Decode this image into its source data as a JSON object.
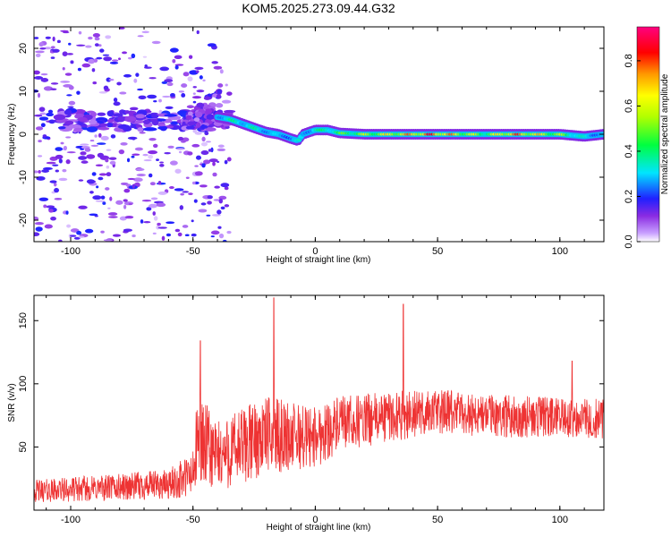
{
  "title": "KOM5.2025.273.09.44.G32",
  "colors": {
    "snr_line": "#ee3333",
    "frame": "#000000",
    "background": "#ffffff"
  },
  "chart_data": [
    {
      "type": "heatmap",
      "xlabel": "Height of straight line (km)",
      "ylabel": "Frequency (Hz)",
      "xlim": [
        -115,
        118
      ],
      "ylim": [
        -25,
        25
      ],
      "xticks": [
        -100,
        -50,
        0,
        50,
        100
      ],
      "yticks": [
        -20,
        -10,
        0,
        10,
        20
      ],
      "colorbar": {
        "label": "Normalized spectral amplitude",
        "ticks": [
          "0.0",
          "0.2",
          "0.4",
          "0.6",
          "0.8"
        ],
        "range": [
          0,
          0.95
        ],
        "colormap": "rainbow (purple-blue-cyan-green-yellow-orange-red-magenta)"
      },
      "ridge": [
        {
          "x": -40,
          "y": 4,
          "amp": 0.35
        },
        {
          "x": -35,
          "y": 3.5,
          "amp": 0.4
        },
        {
          "x": -30,
          "y": 2.5,
          "amp": 0.4
        },
        {
          "x": -25,
          "y": 1.5,
          "amp": 0.4
        },
        {
          "x": -20,
          "y": 0.5,
          "amp": 0.35
        },
        {
          "x": -15,
          "y": 0,
          "amp": 0.3
        },
        {
          "x": -10,
          "y": -1,
          "amp": 0.3
        },
        {
          "x": -7,
          "y": -1.5,
          "amp": 0.35
        },
        {
          "x": -5,
          "y": 0,
          "amp": 0.3
        },
        {
          "x": 0,
          "y": 1,
          "amp": 0.4
        },
        {
          "x": 5,
          "y": 1,
          "amp": 0.45
        },
        {
          "x": 10,
          "y": 0.3,
          "amp": 0.5
        },
        {
          "x": 20,
          "y": 0,
          "amp": 0.6
        },
        {
          "x": 30,
          "y": 0,
          "amp": 0.7
        },
        {
          "x": 40,
          "y": 0,
          "amp": 0.8
        },
        {
          "x": 50,
          "y": 0,
          "amp": 0.9
        },
        {
          "x": 60,
          "y": 0,
          "amp": 0.7
        },
        {
          "x": 70,
          "y": 0,
          "amp": 0.55
        },
        {
          "x": 80,
          "y": 0,
          "amp": 0.85
        },
        {
          "x": 90,
          "y": 0,
          "amp": 0.75
        },
        {
          "x": 100,
          "y": 0,
          "amp": 0.6
        },
        {
          "x": 110,
          "y": -0.5,
          "amp": 0.35
        },
        {
          "x": 118,
          "y": 0,
          "amp": 0.3
        }
      ],
      "scatter_region": {
        "x_range": [
          -115,
          -35
        ],
        "y_range": [
          -25,
          25
        ],
        "amp_range": [
          0.02,
          0.2
        ]
      },
      "lobe": {
        "x_range": [
          -55,
          -38
        ],
        "y_range": [
          3,
          12
        ],
        "amp_range": [
          0.05,
          0.18
        ]
      }
    },
    {
      "type": "line",
      "xlabel": "Height of straight line (km)",
      "ylabel": "SNR (v/v)",
      "xlim": [
        -115,
        118
      ],
      "ylim": [
        0,
        170
      ],
      "xticks": [
        -100,
        -50,
        0,
        50,
        100
      ],
      "yticks": [
        50,
        100,
        150
      ],
      "series": [
        {
          "envelope": [
            {
              "x": -115,
              "mean": 15,
              "spread": 9
            },
            {
              "x": -60,
              "mean": 20,
              "spread": 12
            },
            {
              "x": -50,
              "mean": 28,
              "spread": 20
            },
            {
              "x": -48,
              "mean": 55,
              "spread": 40
            },
            {
              "x": -40,
              "mean": 42,
              "spread": 28
            },
            {
              "x": -30,
              "mean": 50,
              "spread": 32
            },
            {
              "x": -20,
              "mean": 60,
              "spread": 30
            },
            {
              "x": -10,
              "mean": 58,
              "spread": 28
            },
            {
              "x": 0,
              "mean": 58,
              "spread": 25
            },
            {
              "x": 10,
              "mean": 68,
              "spread": 22
            },
            {
              "x": 30,
              "mean": 74,
              "spread": 20
            },
            {
              "x": 50,
              "mean": 78,
              "spread": 18
            },
            {
              "x": 70,
              "mean": 75,
              "spread": 17
            },
            {
              "x": 100,
              "mean": 73,
              "spread": 16
            },
            {
              "x": 118,
              "mean": 72,
              "spread": 16
            }
          ],
          "spikes": [
            {
              "x": -47,
              "value": 134
            },
            {
              "x": -17,
              "value": 168
            },
            {
              "x": 36,
              "value": 163
            },
            {
              "x": 105,
              "value": 118
            }
          ]
        }
      ]
    }
  ]
}
